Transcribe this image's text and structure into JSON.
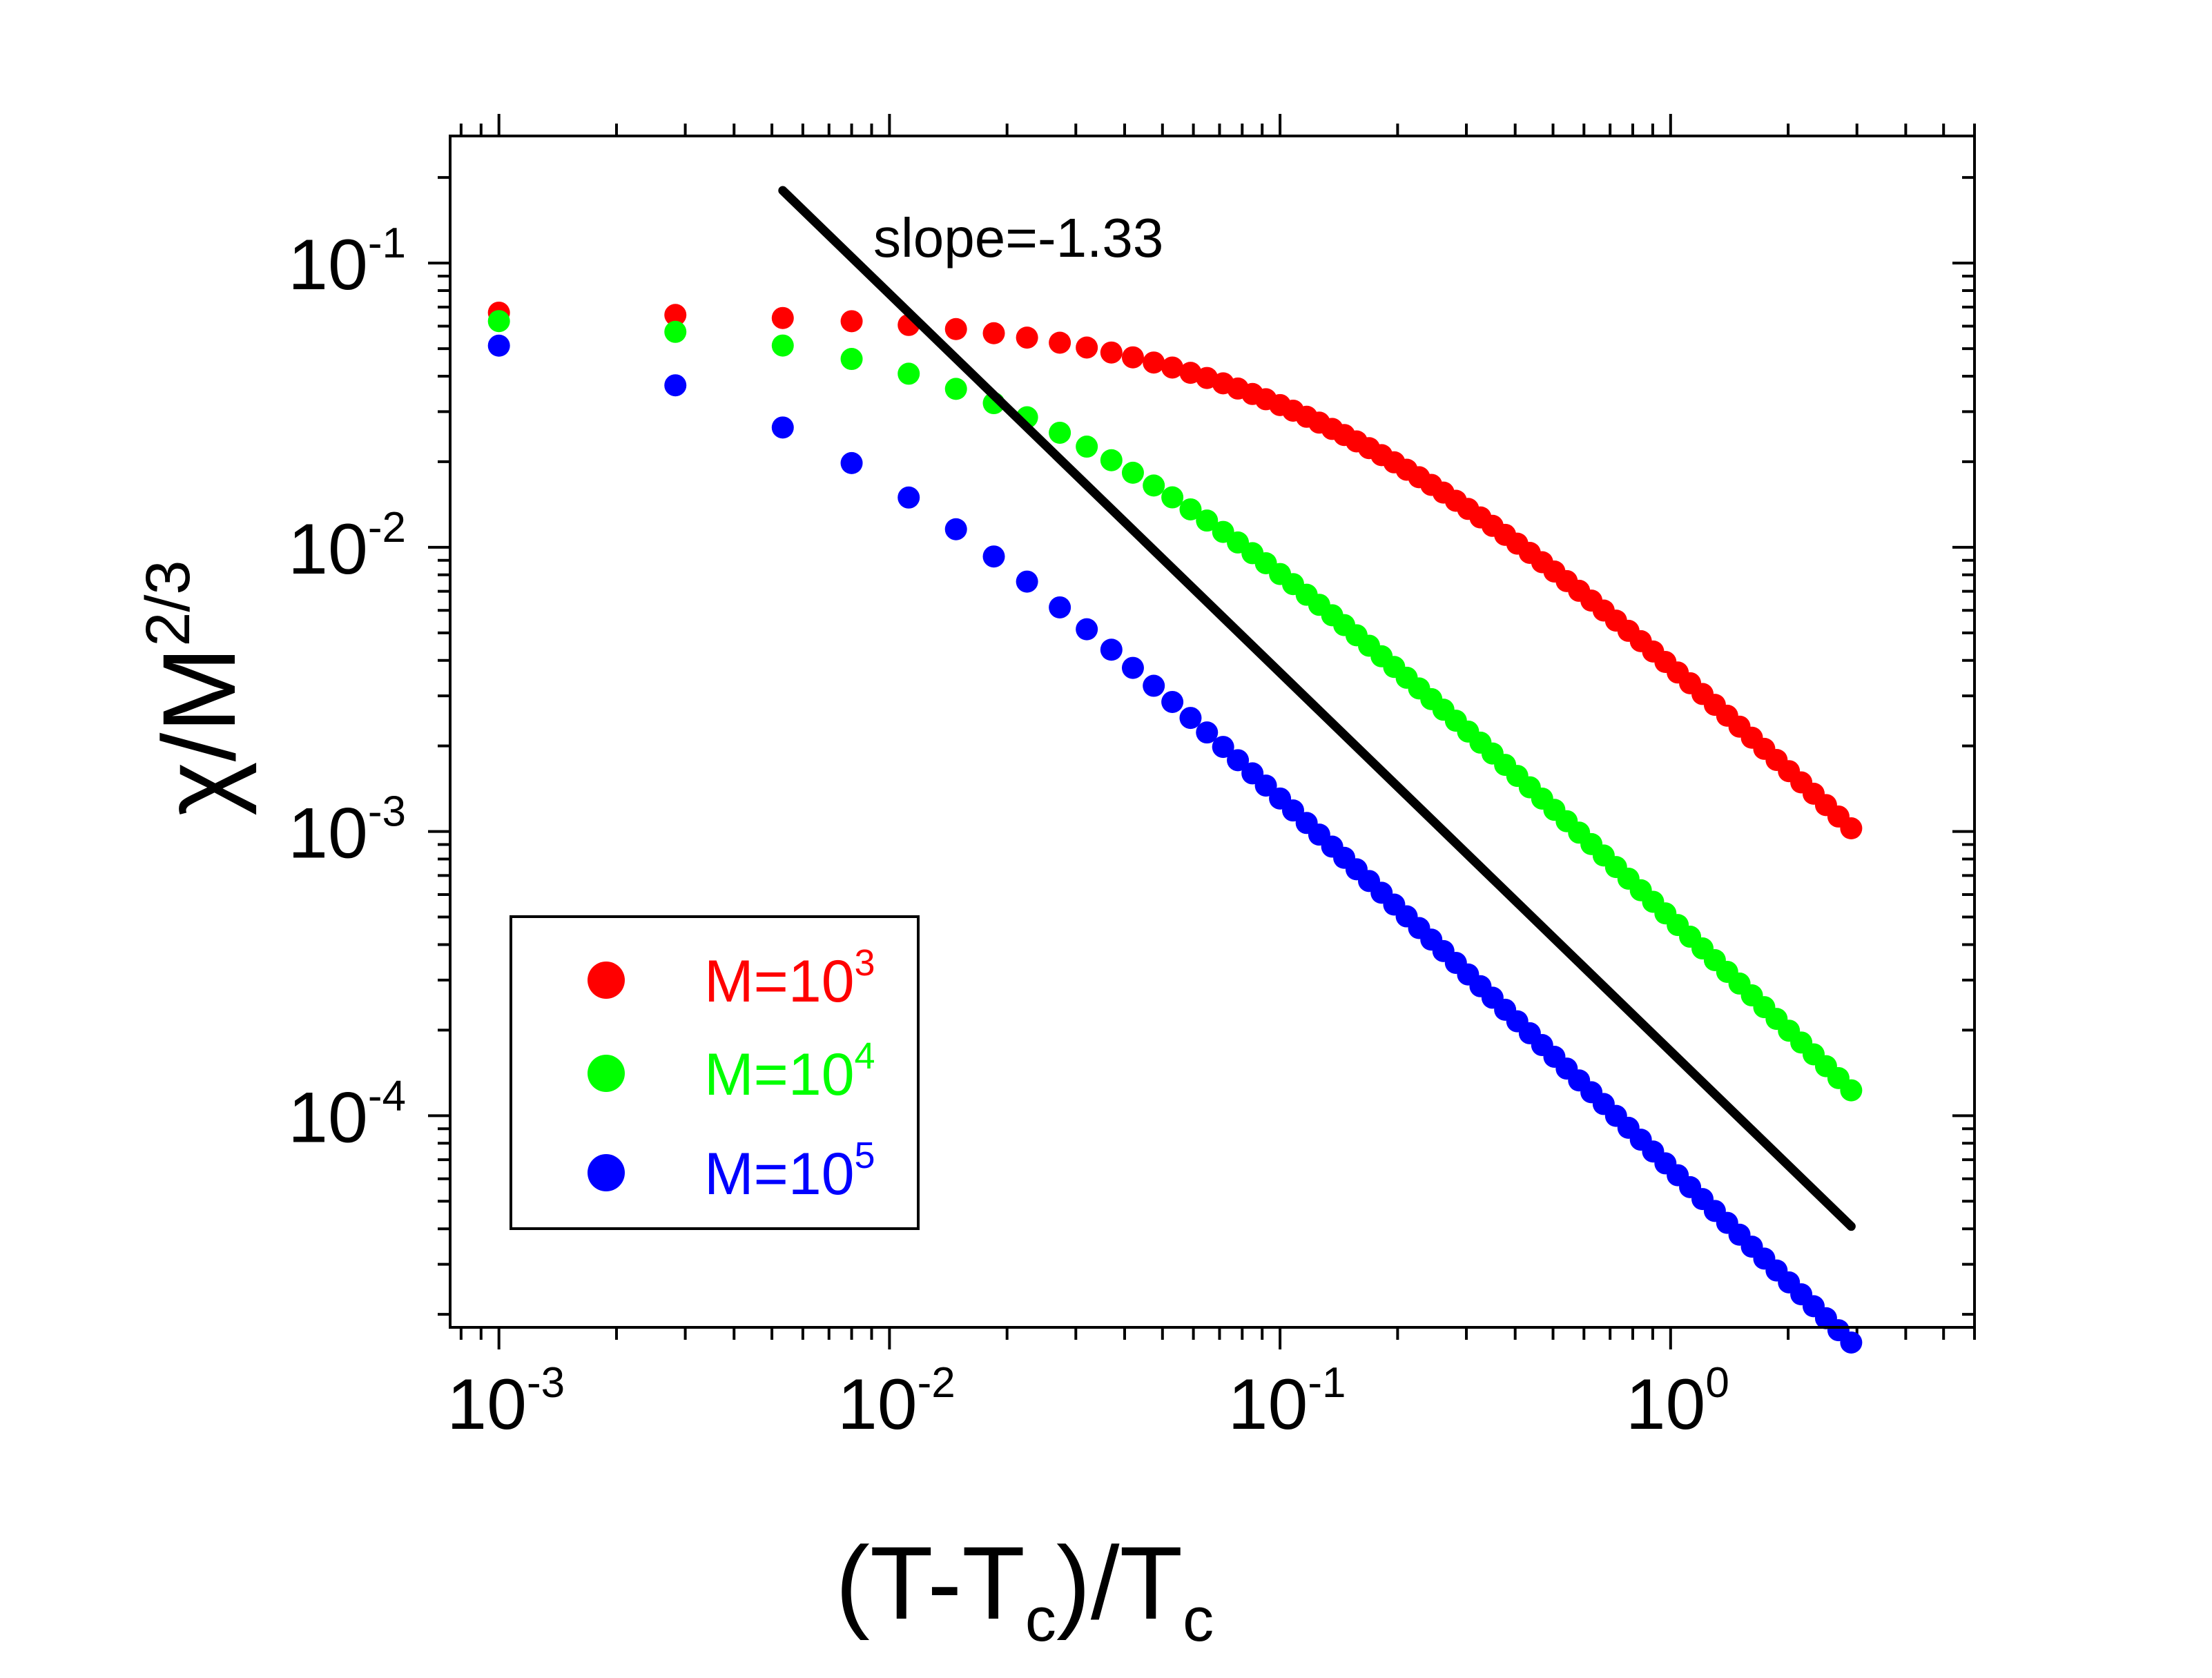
{
  "chart_data": {
    "type": "scatter",
    "scale": {
      "x": "log",
      "y": "log"
    },
    "xlim": [
      0.00075,
      6.0
    ],
    "ylim": [
      1.8e-05,
      0.28
    ],
    "x_ticks": [
      {
        "base": "10",
        "exp": "-3",
        "value": 0.001
      },
      {
        "base": "10",
        "exp": "-2",
        "value": 0.01
      },
      {
        "base": "10",
        "exp": "-1",
        "value": 0.1
      },
      {
        "base": "10",
        "exp": "0",
        "value": 1
      }
    ],
    "y_ticks": [
      {
        "base": "10",
        "exp": "-1",
        "value": 0.1
      },
      {
        "base": "10",
        "exp": "-2",
        "value": 0.01
      },
      {
        "base": "10",
        "exp": "-3",
        "value": 0.001
      },
      {
        "base": "10",
        "exp": "-4",
        "value": 0.0001
      }
    ],
    "xlabel": {
      "open": "(T-T",
      "sub1": "c",
      "mid": ")/T",
      "sub2": "c"
    },
    "ylabel": {
      "main": "χ/M",
      "sup": "2/3"
    },
    "annotation": "slope=-1.33",
    "series": [
      {
        "name": "M=10^3",
        "label_base": "M=10",
        "label_exp": "3",
        "color": "#ff0000",
        "model": {
          "amplitude": 0.0676,
          "x0": 0.13,
          "exponent": 1.33
        },
        "x_points": [
          0.001,
          0.00283,
          0.00533,
          0.008,
          0.0112,
          0.0148,
          0.0185,
          0.0225,
          0.0273,
          0.032,
          0.037,
          0.042,
          0.0475,
          0.053,
          0.059,
          0.065,
          0.0715,
          0.078,
          0.085,
          0.092,
          0.1,
          0.108,
          0.117,
          0.126,
          0.136,
          0.146,
          0.157,
          0.169,
          0.182,
          0.196,
          0.211,
          0.227,
          0.244,
          0.262,
          0.282,
          0.303,
          0.326,
          0.35,
          0.377,
          0.405,
          0.436,
          0.469,
          0.504,
          0.542,
          0.583,
          0.627,
          0.674,
          0.725,
          0.78,
          0.839,
          0.902,
          0.97,
          1.043,
          1.122,
          1.207,
          1.298,
          1.396,
          1.501,
          1.615,
          1.737,
          1.868,
          2.009,
          2.161,
          2.324,
          2.5,
          2.69,
          2.9
        ]
      },
      {
        "name": "M=10^4",
        "label_base": "M=10",
        "label_exp": "4",
        "color": "#00ff00",
        "model": {
          "amplitude": 0.0657,
          "x0": 0.026,
          "exponent": 1.33
        },
        "x_points": [
          0.001,
          0.00283,
          0.00533,
          0.008,
          0.0112,
          0.0148,
          0.0185,
          0.0225,
          0.0273,
          0.032,
          0.037,
          0.042,
          0.0475,
          0.053,
          0.059,
          0.065,
          0.0715,
          0.078,
          0.085,
          0.092,
          0.1,
          0.108,
          0.117,
          0.126,
          0.136,
          0.146,
          0.157,
          0.169,
          0.182,
          0.196,
          0.211,
          0.227,
          0.244,
          0.262,
          0.282,
          0.303,
          0.326,
          0.35,
          0.377,
          0.405,
          0.436,
          0.469,
          0.504,
          0.542,
          0.583,
          0.627,
          0.674,
          0.725,
          0.78,
          0.839,
          0.902,
          0.97,
          1.043,
          1.122,
          1.207,
          1.298,
          1.396,
          1.501,
          1.615,
          1.737,
          1.868,
          2.009,
          2.161,
          2.324,
          2.5,
          2.69,
          2.9
        ]
      },
      {
        "name": "M=10^5",
        "label_base": "M=10",
        "label_exp": "5",
        "color": "#0000ff",
        "model": {
          "amplitude": 0.0635,
          "x0": 0.0057,
          "exponent": 1.33
        },
        "x_points": [
          0.001,
          0.00283,
          0.00533,
          0.008,
          0.0112,
          0.0148,
          0.0185,
          0.0225,
          0.0273,
          0.032,
          0.037,
          0.042,
          0.0475,
          0.053,
          0.059,
          0.065,
          0.0715,
          0.078,
          0.085,
          0.092,
          0.1,
          0.108,
          0.117,
          0.126,
          0.136,
          0.146,
          0.157,
          0.169,
          0.182,
          0.196,
          0.211,
          0.227,
          0.244,
          0.262,
          0.282,
          0.303,
          0.326,
          0.35,
          0.377,
          0.405,
          0.436,
          0.469,
          0.504,
          0.542,
          0.583,
          0.627,
          0.674,
          0.725,
          0.78,
          0.839,
          0.902,
          0.97,
          1.043,
          1.122,
          1.207,
          1.298,
          1.396,
          1.501,
          1.615,
          1.737,
          1.868,
          2.009,
          2.161,
          2.324,
          2.5,
          2.69,
          2.9
        ]
      }
    ],
    "fit_line": {
      "label": "slope=-1.33",
      "slope": -1.33,
      "x": [
        0.00533,
        2.9
      ],
      "y": [
        0.18,
        4.08e-05
      ],
      "color": "#000000"
    },
    "legend_placement": "bottom-left"
  }
}
